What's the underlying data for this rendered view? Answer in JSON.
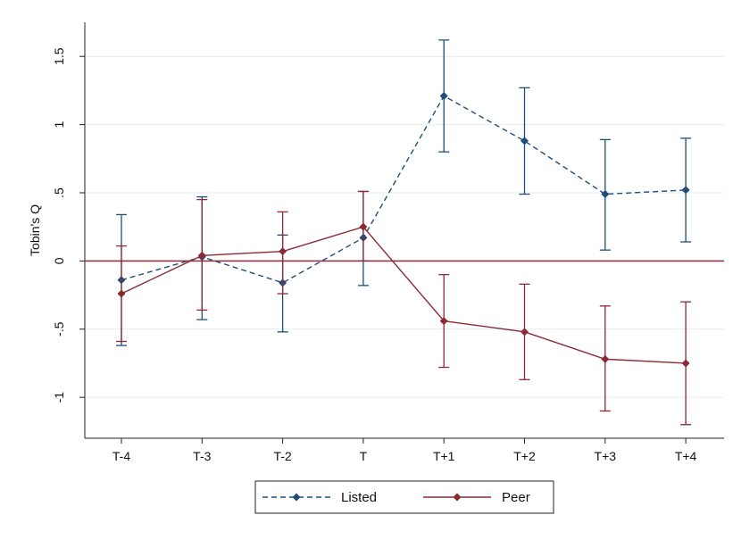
{
  "chart_data": {
    "type": "line",
    "title": "",
    "xlabel": "",
    "ylabel": "Tobin's Q",
    "categories": [
      "T-4",
      "T-3",
      "T-2",
      "T",
      "T+1",
      "T+2",
      "T+3",
      "T+4"
    ],
    "ylim": [
      -1.3,
      1.75
    ],
    "yticks": [
      -1,
      -0.5,
      0,
      0.5,
      1,
      1.5
    ],
    "ytick_labels": [
      "-1",
      "-.5",
      "0",
      ".5",
      "1",
      "1.5"
    ],
    "grid": true,
    "reference_line": {
      "y": 0,
      "color": "#a0283a"
    },
    "legend_position": "bottom",
    "series": [
      {
        "name": "Listed",
        "color": "#1f4e79",
        "line_style": "dashed",
        "marker": "diamond",
        "values": [
          -0.14,
          0.03,
          -0.16,
          0.17,
          1.21,
          0.88,
          0.49,
          0.52
        ],
        "ci_low": [
          -0.62,
          -0.43,
          -0.52,
          -0.18,
          0.8,
          0.49,
          0.08,
          0.14
        ],
        "ci_high": [
          0.34,
          0.47,
          0.19,
          0.51,
          1.62,
          1.27,
          0.89,
          0.9
        ]
      },
      {
        "name": "Peer",
        "color": "#8b2a35",
        "line_style": "solid",
        "marker": "diamond",
        "values": [
          -0.24,
          0.04,
          0.07,
          0.25,
          -0.44,
          -0.52,
          -0.72,
          -0.75
        ],
        "ci_low": [
          -0.59,
          -0.36,
          -0.24,
          0.0,
          -0.78,
          -0.87,
          -1.1,
          -1.2
        ],
        "ci_high": [
          0.11,
          0.45,
          0.36,
          0.51,
          -0.1,
          -0.17,
          -0.33,
          -0.3
        ]
      }
    ]
  }
}
